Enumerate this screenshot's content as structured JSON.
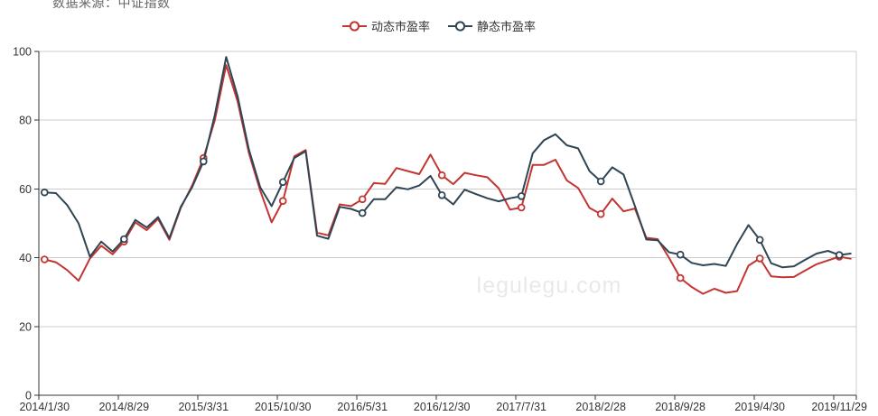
{
  "source_note": "数据来源：中证指数",
  "watermark": "legulegu.com",
  "legend": {
    "items": [
      {
        "label": "动态市盈率",
        "color": "#c23531",
        "key": "dynamic-pe"
      },
      {
        "label": "静态市盈率",
        "color": "#2f4554",
        "key": "static-pe"
      }
    ]
  },
  "chart_data": {
    "type": "line",
    "title": "",
    "xlabel": "",
    "ylabel": "",
    "ylim": [
      0,
      100
    ],
    "y_ticks": [
      0,
      20,
      40,
      60,
      80,
      100
    ],
    "grid": true,
    "legend_position": "top-center",
    "n_points": 72,
    "marker_interval": 7,
    "x_tick_indices": [
      0,
      7,
      14,
      21,
      28,
      35,
      42,
      49,
      56,
      63,
      70
    ],
    "x_tick_labels": [
      "2014/1/30",
      "2014/8/29",
      "2015/3/31",
      "2015/10/30",
      "2016/5/31",
      "2016/12/30",
      "2017/7/31",
      "2018/2/28",
      "2018/9/28",
      "2019/4/30",
      "2019/11/29"
    ],
    "series": [
      {
        "name": "动态市盈率",
        "color": "#c23531",
        "values": [
          39.5,
          38.7,
          36.4,
          33.3,
          39.8,
          43.5,
          41,
          44.7,
          50.3,
          48,
          51.3,
          45.2,
          54.5,
          61,
          69,
          80,
          96,
          85.5,
          70.5,
          59.5,
          50.3,
          56.5,
          69.5,
          71.3,
          47.3,
          46.5,
          55.5,
          55,
          57,
          61.7,
          61.5,
          66.1,
          65.2,
          64.3,
          70,
          64,
          61.4,
          64.7,
          64,
          63.4,
          60.2,
          54,
          54.6,
          67,
          67,
          68.5,
          62.5,
          60.3,
          54.5,
          52.7,
          57.2,
          53.5,
          54.3,
          45.8,
          45.4,
          40,
          34.1,
          31.5,
          29.5,
          31,
          29.8,
          30.3,
          37.7,
          39.8,
          34.6,
          34.3,
          34.4,
          36.3,
          38.1,
          39.2,
          40.3,
          39.7
        ]
      },
      {
        "name": "静态市盈率",
        "color": "#2f4554",
        "values": [
          59,
          58.8,
          55.3,
          50,
          40.3,
          44.7,
          41.8,
          45.4,
          51,
          48.8,
          51.8,
          45.7,
          54.8,
          60.5,
          68,
          81.5,
          98.4,
          87,
          71.5,
          60.5,
          55,
          62,
          69,
          71,
          46.4,
          45.5,
          54.8,
          54.2,
          53,
          57,
          57,
          60.5,
          59.9,
          61,
          63.8,
          58.2,
          55.5,
          59.8,
          58.5,
          57.3,
          56.4,
          57.3,
          57.9,
          70.4,
          74.2,
          75.9,
          72.7,
          71.8,
          65.2,
          62.2,
          66.3,
          64.2,
          55,
          45.3,
          45.1,
          41.6,
          40.9,
          38.5,
          37.8,
          38.2,
          37.6,
          44,
          49.5,
          45.2,
          38.4,
          37.2,
          37.5,
          39.4,
          41.2,
          42,
          40.8,
          41.2
        ]
      }
    ]
  },
  "colors": {
    "axis": "#333333",
    "grid": "#cccccc",
    "tick_text": "#333333",
    "source_note": "#666666",
    "watermark": "#e9e9e9",
    "background": "#ffffff"
  }
}
